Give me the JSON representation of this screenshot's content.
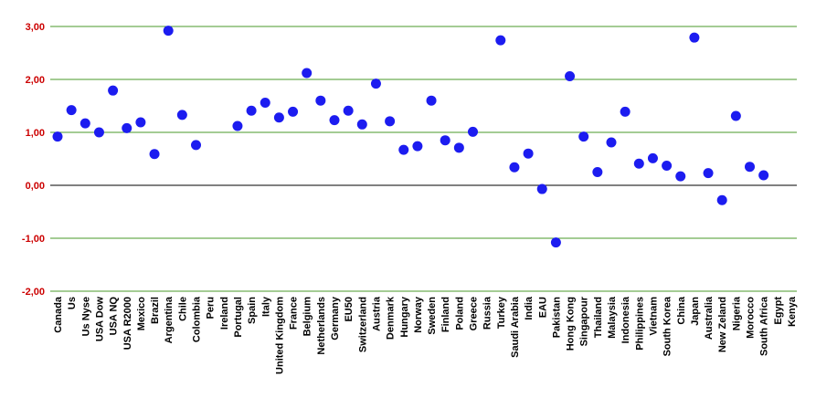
{
  "chart_data": {
    "type": "scatter",
    "title": "",
    "xlabel": "",
    "ylabel": "",
    "ylim": [
      -2,
      3
    ],
    "yticks": [
      "3,00",
      "2,00",
      "1,00",
      "0,00",
      "-1,00",
      "-2,00"
    ],
    "grid": true,
    "legend": "none",
    "colors": {
      "point": "#1c1cf0",
      "grid": "#4a9a2a",
      "zero_line": "#000000",
      "y_tick_label": "#cc0000"
    },
    "categories": [
      "Canada",
      "Us",
      "Us Nyse",
      "USA Dow",
      "USA NQ",
      "USA R2000",
      "Mexico",
      "Brazil",
      "Argentina",
      "Chile",
      "Colombia",
      "Peru",
      "Ireland",
      "Portugal",
      "Spain",
      "Italy",
      "United Kingdom",
      "France",
      "Belgium",
      "Netherlands",
      "Germany",
      "EU50",
      "Switzerland",
      "Austria",
      "Denmark",
      "Hungary",
      "Norway",
      "Sweden",
      "Finland",
      "Poland",
      "Greece",
      "Russia",
      "Turkey",
      "Saudi Arabia",
      "India",
      "EAU",
      "Pakistan",
      "Hong Kong",
      "Singapour",
      "Thailand",
      "Malaysia",
      "Indonesia",
      "Philippines",
      "Vietnam",
      "South Korea",
      "China",
      "Japan",
      "Australia",
      "New Zeland",
      "Nigeria",
      "Morocco",
      "South Africa",
      "Egypt",
      "Kenya"
    ],
    "values": [
      0.92,
      1.42,
      1.17,
      1.0,
      1.79,
      1.08,
      1.19,
      0.59,
      2.92,
      1.33,
      0.76,
      null,
      null,
      1.12,
      1.41,
      1.56,
      1.28,
      1.39,
      2.12,
      1.6,
      1.23,
      1.41,
      1.15,
      1.92,
      1.21,
      0.67,
      0.74,
      1.6,
      0.85,
      0.71,
      1.01,
      null,
      2.74,
      0.34,
      0.6,
      -0.07,
      -1.08,
      2.06,
      0.92,
      0.25,
      0.81,
      1.39,
      0.41,
      0.51,
      0.37,
      0.17,
      2.79,
      0.23,
      -0.28,
      1.31,
      0.35,
      0.19,
      null,
      null
    ]
  }
}
